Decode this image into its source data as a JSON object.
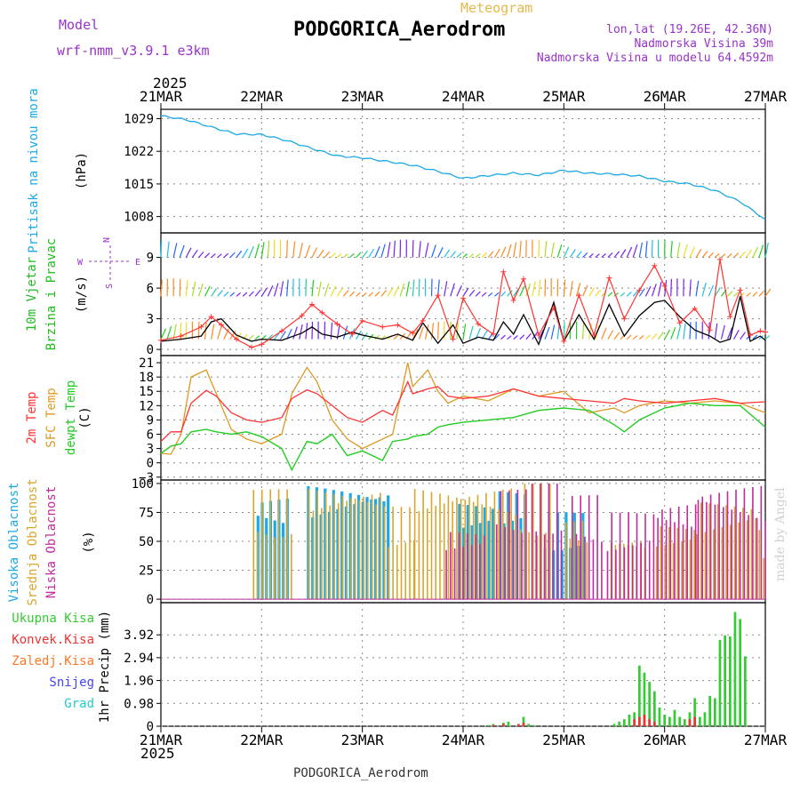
{
  "header": {
    "model_label": "Model",
    "model_name": "wrf-nmm_v3.9.1 e3km",
    "meteogram_label": "Meteogram",
    "station_title": "PODGORICA_Aerodrom",
    "lonlat": "lon,lat (19.26E, 42.36N)",
    "altitude": "Nadmorska Visina 39m",
    "model_altitude": "Nadmorska Visina u modelu 64.4592m",
    "year_top": "2025",
    "year_bottom": "2025",
    "footer_station": "PODGORICA_Aerodrom",
    "credit": "made by Angel"
  },
  "colors": {
    "pressure": "#1ca9e6",
    "wind_label": "#22bb22",
    "temp": "#ff3333",
    "sfc_temp": "#dd9922",
    "dewpt": "#22cc22",
    "high_cloud": "#1ca9e6",
    "mid_cloud": "#d9a62e",
    "low_cloud": "#c02c9c",
    "total_precip": "#33cc33",
    "conv_precip": "#ee3333",
    "frozen_precip": "#ff7722",
    "snow": "#4444ee",
    "hail": "#22cccc",
    "purple_text": "#9933cc",
    "gust": "#ff3333"
  },
  "chart_data": [
    {
      "type": "line",
      "id": "pressure",
      "ylabel": "Pritisak na nivou mora",
      "unit": "(hPa)",
      "ylim": [
        1004.5,
        1031
      ],
      "yticks": [
        1008,
        1015,
        1022,
        1029
      ],
      "xticks": [
        "21MAR",
        "22MAR",
        "23MAR",
        "24MAR",
        "25MAR",
        "26MAR",
        "27MAR"
      ],
      "x_days": [
        0,
        0.25,
        0.5,
        0.75,
        1.0,
        1.25,
        1.5,
        1.75,
        2.0,
        2.25,
        2.5,
        2.75,
        3.0,
        3.25,
        3.5,
        3.75,
        4.0,
        4.25,
        4.5,
        4.75,
        5.0,
        5.25,
        5.5,
        5.75,
        6.0
      ],
      "series": [
        {
          "name": "SLP",
          "values": [
            1029.6,
            1028.8,
            1027.2,
            1025.7,
            1025.6,
            1024.3,
            1022.6,
            1021.0,
            1020.6,
            1019.8,
            1019.0,
            1017.7,
            1016.2,
            1016.8,
            1017.3,
            1016.9,
            1017.9,
            1017.3,
            1017.1,
            1016.7,
            1015.6,
            1015.0,
            1013.6,
            1011.2,
            1007.4
          ]
        }
      ]
    },
    {
      "type": "line",
      "id": "wind",
      "ylabel": [
        "10m Vjetar",
        "Brzina i Pravac"
      ],
      "unit": "(m/s)",
      "ylim": [
        -0.6,
        11.4
      ],
      "yticks": [
        0,
        3,
        6,
        9
      ],
      "compass": [
        "N",
        "W",
        "E",
        "S"
      ],
      "x_days": [
        0,
        0.2,
        0.4,
        0.5,
        0.6,
        0.75,
        0.9,
        1.0,
        1.2,
        1.4,
        1.5,
        1.6,
        1.75,
        1.9,
        2.0,
        2.2,
        2.35,
        2.5,
        2.6,
        2.75,
        2.9,
        3.0,
        3.15,
        3.3,
        3.4,
        3.5,
        3.6,
        3.75,
        3.9,
        4.0,
        4.15,
        4.3,
        4.45,
        4.6,
        4.75,
        4.9,
        5.0,
        5.15,
        5.3,
        5.45,
        5.55,
        5.65,
        5.75,
        5.85,
        5.95,
        6.0
      ],
      "series": [
        {
          "name": "Brzina",
          "values": [
            0.8,
            1.0,
            1.3,
            2.7,
            3.0,
            1.4,
            0.8,
            1.0,
            0.9,
            1.6,
            2.2,
            1.5,
            1.2,
            1.7,
            1.4,
            1.0,
            1.5,
            0.9,
            2.6,
            0.6,
            2.4,
            0.6,
            1.2,
            0.9,
            2.7,
            1.5,
            3.4,
            0.5,
            4.6,
            0.8,
            3.4,
            1.0,
            4.4,
            1.3,
            3.3,
            4.6,
            4.8,
            3.2,
            1.9,
            1.3,
            0.7,
            1.0,
            5.2,
            0.8,
            1.3,
            0.9
          ]
        },
        {
          "name": "Udar",
          "values": [
            0.9,
            1.3,
            2.2,
            3.2,
            2.4,
            1.0,
            0.2,
            0.5,
            1.8,
            3.3,
            4.4,
            3.6,
            2.5,
            1.5,
            2.8,
            2.2,
            2.4,
            1.6,
            2.8,
            5.3,
            1.0,
            5.0,
            2.5,
            1.5,
            7.6,
            4.8,
            6.9,
            1.4,
            4.1,
            0.8,
            5.3,
            1.4,
            7.0,
            3.0,
            5.8,
            8.2,
            6.2,
            2.6,
            4.0,
            1.9,
            8.8,
            3.2,
            5.8,
            1.4,
            1.8,
            1.7
          ]
        }
      ],
      "barb_rows": [
        1,
        5.2,
        9
      ]
    },
    {
      "type": "line",
      "id": "temperature",
      "ylabel": [
        "2m Temp",
        "SFC Temp",
        "dewpt Temp"
      ],
      "unit": "(C)",
      "ylim": [
        -3.6,
        22.5
      ],
      "yticks": [
        -3,
        0,
        3,
        6,
        9,
        12,
        15,
        18,
        21
      ],
      "x_days": [
        0,
        0.1,
        0.2,
        0.3,
        0.45,
        0.55,
        0.7,
        0.85,
        1.0,
        1.2,
        1.3,
        1.45,
        1.55,
        1.7,
        1.85,
        2.0,
        2.2,
        2.3,
        2.45,
        2.5,
        2.65,
        2.75,
        2.85,
        3.0,
        3.25,
        3.5,
        3.75,
        4.0,
        4.25,
        4.5,
        4.6,
        4.75,
        5.0,
        5.25,
        5.5,
        5.75,
        6.0
      ],
      "series": [
        {
          "name": "2m Temp",
          "values": [
            4.5,
            6.5,
            6.5,
            12.5,
            15.2,
            14.0,
            10.5,
            9.0,
            8.5,
            9.5,
            13.5,
            15.3,
            14.5,
            12.0,
            9.5,
            8.5,
            11.0,
            10.0,
            17.0,
            14.5,
            15.5,
            16.0,
            14.0,
            13.5,
            14.0,
            15.5,
            14.0,
            13.5,
            13.0,
            12.5,
            13.5,
            13.0,
            12.5,
            13.0,
            13.5,
            12.5,
            12.8
          ]
        },
        {
          "name": "SFC Temp",
          "values": [
            2.0,
            1.8,
            6.0,
            18.0,
            19.5,
            14.5,
            7.0,
            5.0,
            4.0,
            6.0,
            14.5,
            20.0,
            17.0,
            9.0,
            5.0,
            3.0,
            5.0,
            6.0,
            21.0,
            16.0,
            19.5,
            15.0,
            12.5,
            14.0,
            13.0,
            15.5,
            14.0,
            15.0,
            10.5,
            11.5,
            10.5,
            12.0,
            13.0,
            12.5,
            13.0,
            12.5,
            10.5
          ]
        },
        {
          "name": "dewpt Temp",
          "values": [
            2.0,
            3.5,
            4.0,
            6.5,
            7.0,
            6.5,
            6.0,
            6.5,
            5.5,
            3.0,
            -1.5,
            4.5,
            4.0,
            6.0,
            1.5,
            2.5,
            0.5,
            4.5,
            5.0,
            5.5,
            6.0,
            7.5,
            8.0,
            8.5,
            9.0,
            9.5,
            11.0,
            11.5,
            11.0,
            8.0,
            6.5,
            9.0,
            11.5,
            12.5,
            12.0,
            12.0,
            7.5
          ]
        }
      ]
    },
    {
      "type": "bar",
      "id": "clouds",
      "ylabel": [
        "Visoka Oblacnost",
        "Srednja Oblacnost",
        "Niska Oblacnost"
      ],
      "unit": "(%)",
      "ylim": [
        -3,
        103
      ],
      "yticks": [
        0,
        25,
        50,
        75,
        100
      ],
      "bins_per_day": 24,
      "series": [
        {
          "name": "Visoka",
          "segments": [
            [
              0.95,
              1.25,
              90
            ],
            [
              1.45,
              2.25,
              100
            ],
            [
              2.95,
              3.3,
              85
            ],
            [
              3.35,
              3.6,
              95
            ],
            [
              3.8,
              4.2,
              75
            ]
          ]
        },
        {
          "name": "Srednja",
          "segments": [
            [
              0.9,
              1.3,
              95
            ],
            [
              1.45,
              2.2,
              100
            ],
            [
              2.2,
              2.5,
              80
            ],
            [
              2.5,
              3.5,
              100
            ],
            [
              3.55,
              3.85,
              100
            ],
            [
              4.0,
              4.25,
              70
            ],
            [
              4.45,
              4.8,
              55
            ],
            [
              4.9,
              5.3,
              65
            ],
            [
              5.3,
              5.9,
              85
            ],
            [
              5.92,
              6.0,
              60
            ]
          ]
        },
        {
          "name": "Niska",
          "segments": [
            [
              2.8,
              3.2,
              60
            ],
            [
              3.3,
              3.6,
              95
            ],
            [
              3.65,
              3.95,
              100
            ],
            [
              4.05,
              4.35,
              90
            ],
            [
              4.4,
              4.9,
              75
            ],
            [
              4.9,
              5.3,
              85
            ],
            [
              5.3,
              6.0,
              100
            ]
          ]
        }
      ]
    },
    {
      "type": "bar",
      "id": "precip",
      "ylabel": "1hr Precip (mm)",
      "ylim": [
        0,
        5.3
      ],
      "yticks": [
        0,
        0.98,
        1.96,
        2.94,
        3.92
      ],
      "legend": [
        "Ukupna Kisa",
        "Konvek.Kisa",
        "Zaledj.Kisa",
        "Snijeg",
        "Grad"
      ],
      "bar_width_days": 0.024,
      "series": [
        {
          "name": "Ukupna Kisa",
          "x": [
            3.25,
            3.3,
            3.4,
            3.45,
            3.55,
            3.6,
            3.65,
            3.7,
            4.5,
            4.55,
            4.6,
            4.65,
            4.7,
            4.75,
            4.8,
            4.85,
            4.9,
            4.95,
            5.0,
            5.05,
            5.1,
            5.15,
            5.2,
            5.25,
            5.3,
            5.35,
            5.4,
            5.45,
            5.5,
            5.55,
            5.6,
            5.65,
            5.7,
            5.75,
            5.8
          ],
          "values": [
            0.05,
            0.1,
            0.15,
            0.2,
            0.1,
            0.4,
            0.1,
            0.05,
            0.1,
            0.2,
            0.3,
            0.5,
            0.6,
            2.6,
            2.3,
            1.9,
            1.5,
            0.8,
            0.5,
            0.4,
            0.7,
            0.4,
            0.3,
            0.6,
            1.2,
            0.4,
            0.6,
            1.3,
            1.2,
            3.7,
            3.9,
            3.85,
            4.9,
            4.6,
            3.0
          ]
        },
        {
          "name": "Konvek.Kisa",
          "x": [
            3.3,
            3.4,
            3.55,
            3.6,
            4.7,
            4.75,
            4.8,
            4.85,
            4.9,
            5.25,
            5.3
          ],
          "values": [
            0.05,
            0.1,
            0.08,
            0.15,
            0.3,
            0.4,
            0.5,
            0.3,
            0.2,
            0.3,
            0.4
          ]
        }
      ]
    }
  ]
}
